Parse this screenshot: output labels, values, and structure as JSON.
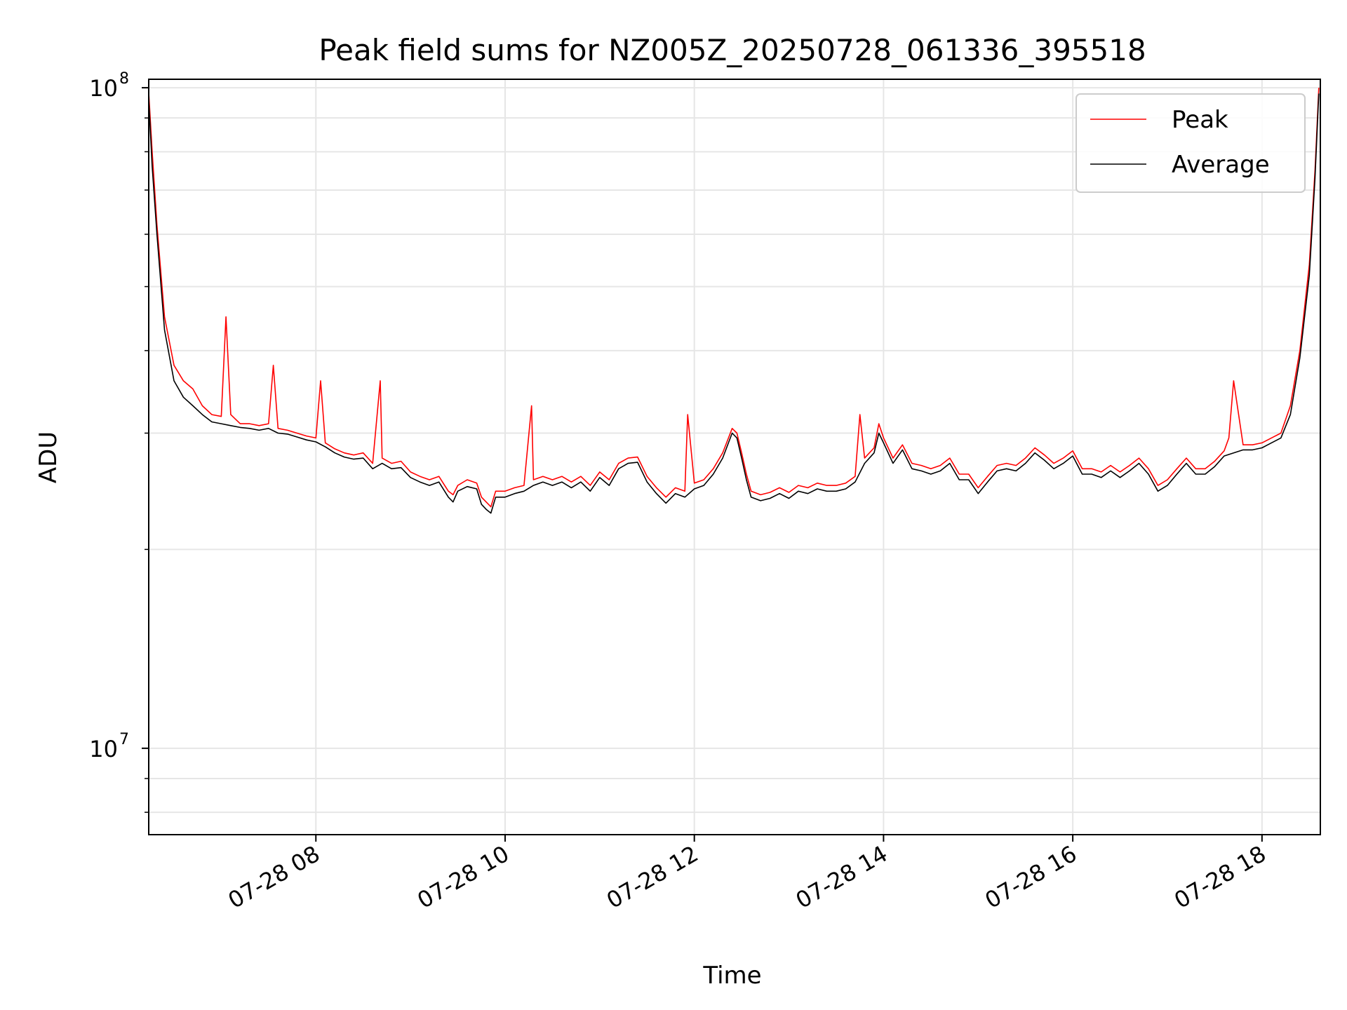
{
  "chart_data": {
    "type": "line",
    "title": "Peak field sums for NZ005Z_20250728_061336_395518",
    "xlabel": "Time",
    "ylabel": "ADU",
    "x_unit": "hours",
    "xlim": [
      "07-28 06:14",
      "07-28 18:37"
    ],
    "yscale": "log",
    "ylim": [
      7400000,
      103000000
    ],
    "grid": true,
    "legend_position": "upper right",
    "x_ticks": [
      "07-28 08",
      "07-28 10",
      "07-28 12",
      "07-28 14",
      "07-28 16",
      "07-28 18"
    ],
    "x_tick_hours": [
      8,
      10,
      12,
      14,
      16,
      18
    ],
    "y_ticks": [
      {
        "base": "10",
        "exp": "7",
        "value": 10000000
      },
      {
        "base": "10",
        "exp": "8",
        "value": 100000000
      }
    ],
    "series": [
      {
        "name": "Peak",
        "color": "#ff0000",
        "x_hours": [
          6.23,
          6.27,
          6.32,
          6.4,
          6.5,
          6.6,
          6.7,
          6.8,
          6.9,
          7.0,
          7.05,
          7.1,
          7.15,
          7.2,
          7.3,
          7.4,
          7.5,
          7.55,
          7.6,
          7.7,
          7.8,
          7.9,
          8.0,
          8.05,
          8.1,
          8.2,
          8.3,
          8.4,
          8.5,
          8.6,
          8.68,
          8.7,
          8.8,
          8.9,
          9.0,
          9.1,
          9.2,
          9.3,
          9.4,
          9.45,
          9.5,
          9.6,
          9.7,
          9.75,
          9.8,
          9.85,
          9.9,
          10.0,
          10.1,
          10.2,
          10.28,
          10.3,
          10.4,
          10.5,
          10.6,
          10.7,
          10.8,
          10.9,
          11.0,
          11.1,
          11.2,
          11.3,
          11.4,
          11.5,
          11.6,
          11.7,
          11.8,
          11.9,
          11.93,
          12.0,
          12.1,
          12.2,
          12.3,
          12.4,
          12.45,
          12.5,
          12.55,
          12.6,
          12.7,
          12.8,
          12.9,
          13.0,
          13.1,
          13.2,
          13.3,
          13.4,
          13.5,
          13.6,
          13.7,
          13.75,
          13.8,
          13.9,
          13.95,
          14.0,
          14.1,
          14.2,
          14.3,
          14.4,
          14.5,
          14.6,
          14.7,
          14.8,
          14.9,
          15.0,
          15.1,
          15.2,
          15.3,
          15.4,
          15.5,
          15.6,
          15.7,
          15.8,
          15.9,
          16.0,
          16.1,
          16.2,
          16.3,
          16.4,
          16.5,
          16.6,
          16.7,
          16.8,
          16.9,
          17.0,
          17.1,
          17.2,
          17.3,
          17.4,
          17.5,
          17.6,
          17.65,
          17.7,
          17.8,
          17.9,
          18.0,
          18.1,
          18.2,
          18.3,
          18.4,
          18.5,
          18.56,
          18.6
        ],
        "values": [
          100000000,
          80000000,
          62000000,
          45000000,
          38000000,
          36000000,
          35000000,
          33000000,
          32000000,
          31800000,
          45000000,
          32000000,
          31500000,
          31000000,
          31000000,
          30800000,
          31000000,
          38000000,
          30500000,
          30300000,
          30000000,
          29700000,
          29500000,
          36000000,
          29000000,
          28400000,
          28000000,
          27800000,
          28000000,
          27000000,
          36000000,
          27500000,
          27000000,
          27200000,
          26200000,
          25800000,
          25500000,
          25800000,
          24500000,
          24200000,
          25000000,
          25500000,
          25200000,
          24000000,
          23600000,
          23200000,
          24500000,
          24500000,
          24800000,
          25000000,
          33000000,
          25500000,
          25800000,
          25500000,
          25800000,
          25300000,
          25800000,
          25000000,
          26200000,
          25500000,
          27000000,
          27500000,
          27600000,
          25800000,
          24800000,
          24000000,
          24800000,
          24500000,
          32000000,
          25200000,
          25500000,
          26500000,
          28000000,
          30500000,
          30000000,
          28000000,
          26000000,
          24500000,
          24200000,
          24400000,
          24800000,
          24400000,
          25000000,
          24800000,
          25200000,
          25000000,
          25000000,
          25200000,
          25800000,
          32000000,
          27500000,
          28500000,
          31000000,
          29500000,
          27500000,
          28800000,
          27000000,
          26800000,
          26500000,
          26800000,
          27500000,
          26000000,
          26000000,
          24800000,
          25800000,
          26800000,
          27000000,
          26800000,
          27500000,
          28500000,
          27800000,
          27000000,
          27500000,
          28200000,
          26500000,
          26500000,
          26200000,
          26800000,
          26200000,
          26800000,
          27500000,
          26500000,
          25000000,
          25500000,
          26500000,
          27500000,
          26500000,
          26500000,
          27200000,
          28200000,
          29500000,
          36000000,
          28800000,
          28800000,
          29000000,
          29500000,
          30000000,
          33000000,
          40000000,
          54000000,
          75000000,
          100000000
        ]
      },
      {
        "name": "Average",
        "color": "#000000",
        "x_hours": [
          6.23,
          6.27,
          6.32,
          6.4,
          6.5,
          6.6,
          6.7,
          6.8,
          6.9,
          7.0,
          7.1,
          7.2,
          7.3,
          7.4,
          7.5,
          7.6,
          7.7,
          7.8,
          7.9,
          8.0,
          8.1,
          8.2,
          8.3,
          8.4,
          8.5,
          8.6,
          8.7,
          8.8,
          8.9,
          9.0,
          9.1,
          9.2,
          9.3,
          9.4,
          9.45,
          9.5,
          9.6,
          9.7,
          9.75,
          9.8,
          9.85,
          9.9,
          10.0,
          10.1,
          10.2,
          10.3,
          10.4,
          10.5,
          10.6,
          10.7,
          10.8,
          10.9,
          11.0,
          11.1,
          11.2,
          11.3,
          11.4,
          11.5,
          11.6,
          11.7,
          11.8,
          11.9,
          12.0,
          12.1,
          12.2,
          12.3,
          12.4,
          12.45,
          12.5,
          12.55,
          12.6,
          12.7,
          12.8,
          12.9,
          13.0,
          13.1,
          13.2,
          13.3,
          13.4,
          13.5,
          13.6,
          13.7,
          13.8,
          13.9,
          13.95,
          14.0,
          14.1,
          14.2,
          14.3,
          14.4,
          14.5,
          14.6,
          14.7,
          14.8,
          14.9,
          15.0,
          15.1,
          15.2,
          15.3,
          15.4,
          15.5,
          15.6,
          15.7,
          15.8,
          15.9,
          16.0,
          16.1,
          16.2,
          16.3,
          16.4,
          16.5,
          16.6,
          16.7,
          16.8,
          16.9,
          17.0,
          17.1,
          17.2,
          17.3,
          17.4,
          17.5,
          17.6,
          17.7,
          17.8,
          17.9,
          18.0,
          18.1,
          18.2,
          18.3,
          18.4,
          18.5,
          18.56,
          18.6
        ],
        "values": [
          98000000,
          76000000,
          60000000,
          43000000,
          36000000,
          34000000,
          33000000,
          32000000,
          31200000,
          31000000,
          30800000,
          30600000,
          30500000,
          30300000,
          30500000,
          30000000,
          29900000,
          29600000,
          29300000,
          29100000,
          28600000,
          28000000,
          27600000,
          27400000,
          27500000,
          26500000,
          27000000,
          26500000,
          26600000,
          25700000,
          25300000,
          25000000,
          25300000,
          24000000,
          23600000,
          24500000,
          24900000,
          24700000,
          23400000,
          23000000,
          22700000,
          24000000,
          24000000,
          24300000,
          24500000,
          25000000,
          25300000,
          25000000,
          25300000,
          24800000,
          25300000,
          24500000,
          25700000,
          25000000,
          26500000,
          27000000,
          27100000,
          25300000,
          24300000,
          23500000,
          24300000,
          24000000,
          24700000,
          25000000,
          26000000,
          27500000,
          30000000,
          29500000,
          27500000,
          25500000,
          24000000,
          23700000,
          23900000,
          24300000,
          23900000,
          24500000,
          24300000,
          24700000,
          24500000,
          24500000,
          24700000,
          25300000,
          27000000,
          28000000,
          30000000,
          29000000,
          27000000,
          28300000,
          26500000,
          26300000,
          26000000,
          26300000,
          27000000,
          25500000,
          25500000,
          24300000,
          25300000,
          26300000,
          26500000,
          26300000,
          27000000,
          28000000,
          27300000,
          26500000,
          27000000,
          27700000,
          26000000,
          26000000,
          25700000,
          26300000,
          25700000,
          26300000,
          27000000,
          26000000,
          24500000,
          25000000,
          26000000,
          27000000,
          26000000,
          26000000,
          26700000,
          27700000,
          28000000,
          28300000,
          28300000,
          28500000,
          29000000,
          29500000,
          32000000,
          39000000,
          52000000,
          73000000,
          98000000
        ]
      }
    ]
  }
}
